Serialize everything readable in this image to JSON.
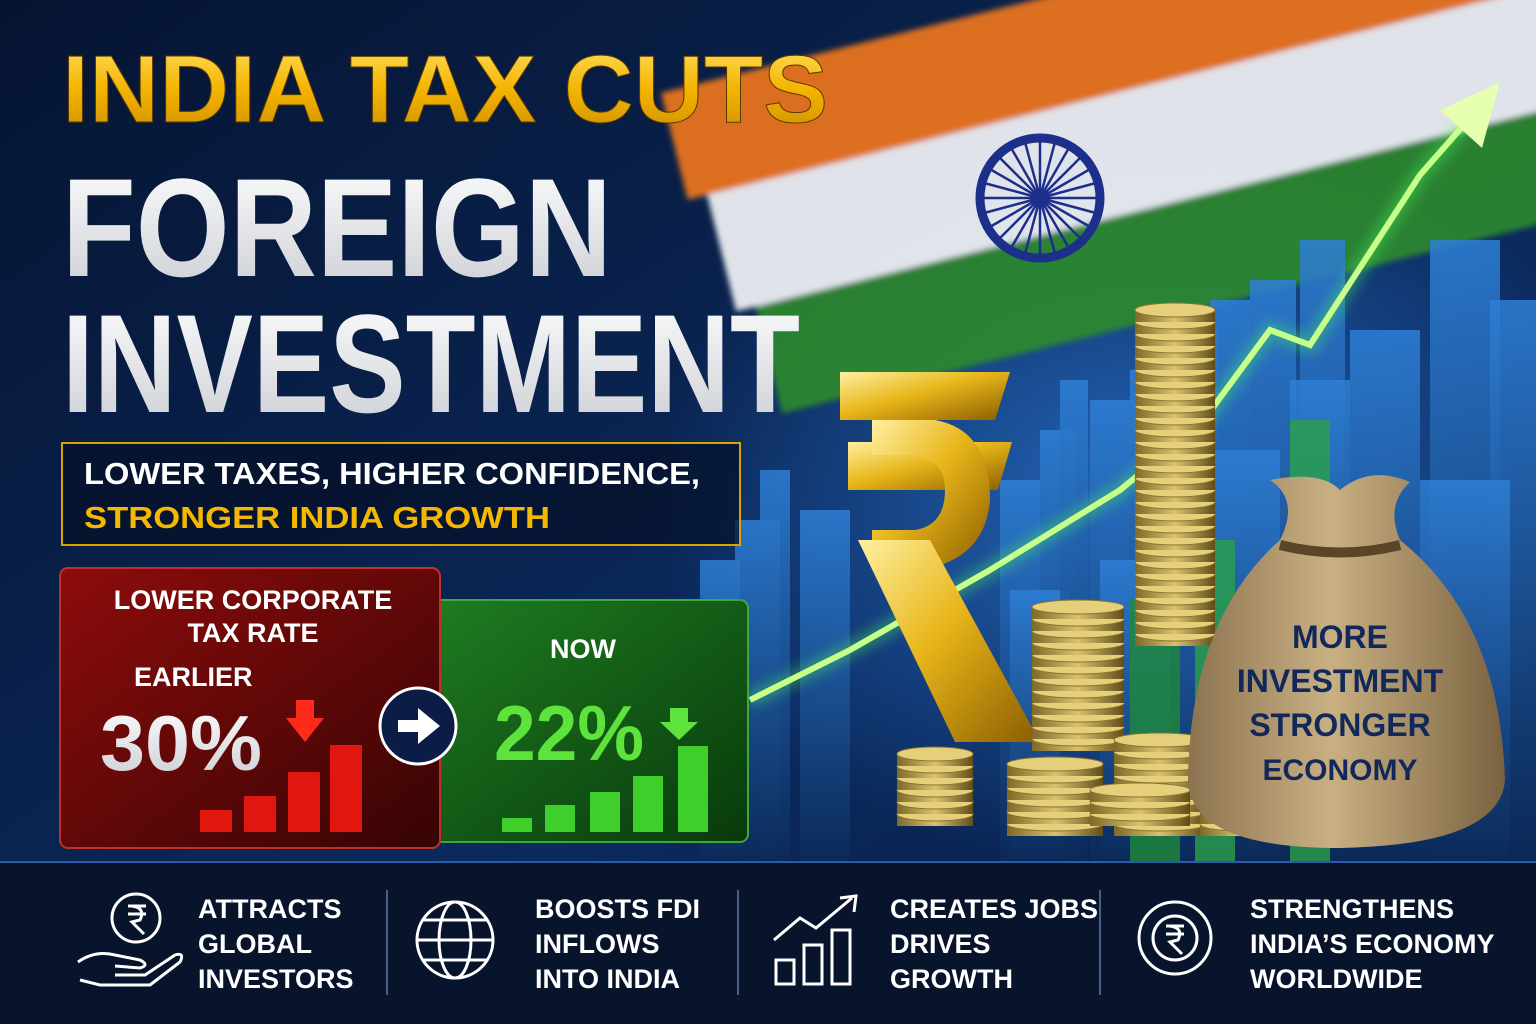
{
  "header": {
    "title_lines": [
      "INDIA TAX CUTS",
      "FOREIGN",
      "INVESTMENT"
    ]
  },
  "tagline": {
    "line1": "LOWER TAXES, HIGHER CONFIDENCE,",
    "line2": "STRONGER INDIA GROWTH"
  },
  "rate_card": {
    "heading_lines": [
      "LOWER CORPORATE",
      "TAX RATE"
    ],
    "earlier": {
      "label": "EARLIER",
      "value": "30%"
    },
    "now": {
      "label": "NOW",
      "value": "22%"
    }
  },
  "bag": {
    "lines": [
      "MORE",
      "INVESTMENT",
      "STRONGER",
      "ECONOMY"
    ]
  },
  "benefits": [
    {
      "lines": [
        "ATTRACTS",
        "GLOBAL",
        "INVESTORS"
      ]
    },
    {
      "lines": [
        "BOOSTS FDI",
        "INFLOWS",
        "INTO INDIA"
      ]
    },
    {
      "lines": [
        "CREATES JOBS",
        "DRIVES",
        "GROWTH"
      ]
    },
    {
      "lines": [
        "STRENGTHENS",
        "INDIA’S ECONOMY",
        "WORLDWIDE"
      ]
    }
  ]
}
